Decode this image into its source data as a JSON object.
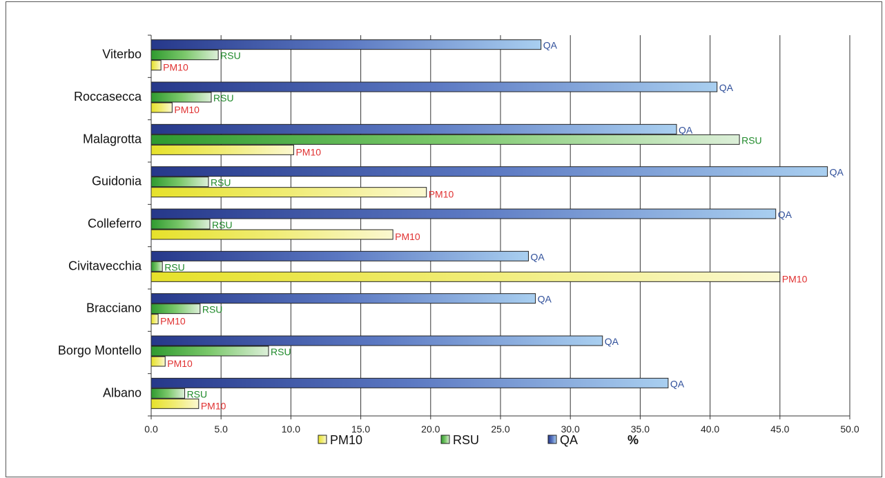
{
  "chart_data": {
    "type": "bar",
    "orientation": "horizontal",
    "categories": [
      "Viterbo",
      "Roccasecca",
      "Malagrotta",
      "Guidonia",
      "Colleferro",
      "Civitavecchia",
      "Bracciano",
      "Borgo Montello",
      "Albano"
    ],
    "series": [
      {
        "name": "QA",
        "values": [
          27.9,
          40.5,
          37.6,
          48.4,
          44.7,
          27.0,
          27.5,
          32.3,
          37.0
        ]
      },
      {
        "name": "RSU",
        "values": [
          4.8,
          4.3,
          42.1,
          4.1,
          4.2,
          0.8,
          3.5,
          8.4,
          2.4
        ]
      },
      {
        "name": "PM10",
        "values": [
          0.7,
          1.5,
          10.2,
          19.7,
          17.3,
          45.0,
          0.5,
          1.0,
          3.4
        ]
      }
    ],
    "series_colors": {
      "QA": "#3a5ba8",
      "RSU": "#4fb03b",
      "PM10": "#e8e23a"
    },
    "label_colors": {
      "QA": "#2f4f9a",
      "RSU": "#1f8a2a",
      "PM10": "#e03030"
    },
    "xlim": [
      0,
      50
    ],
    "xticks": [
      "0.0",
      "5.0",
      "10.0",
      "15.0",
      "20.0",
      "25.0",
      "30.0",
      "35.0",
      "40.0",
      "45.0",
      "50.0"
    ],
    "xtick_values": [
      0,
      5,
      10,
      15,
      20,
      25,
      30,
      35,
      40,
      45,
      50
    ],
    "grid": true,
    "legend": {
      "placement": "bottom",
      "entries": [
        "PM10",
        "RSU",
        "QA"
      ],
      "unit": "%"
    }
  }
}
